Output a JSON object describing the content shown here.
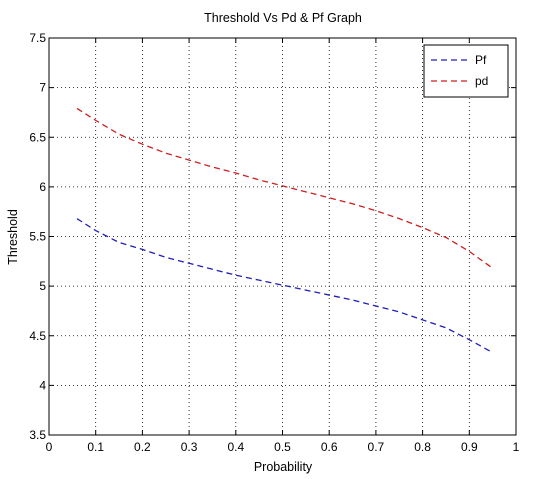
{
  "chart_data": {
    "type": "line",
    "title": "Threshold Vs Pd & Pf Graph",
    "xlabel": "Probability",
    "ylabel": "Threshold",
    "xlim": [
      0,
      1
    ],
    "ylim": [
      3.5,
      7.5
    ],
    "xticks": [
      "0",
      "0.1",
      "0.2",
      "0.3",
      "0.4",
      "0.5",
      "0.6",
      "0.7",
      "0.8",
      "0.9",
      "1"
    ],
    "yticks": [
      "3.5",
      "4",
      "4.5",
      "5",
      "5.5",
      "6",
      "6.5",
      "7",
      "7.5"
    ],
    "grid": true,
    "legend_position": "top-right",
    "series": [
      {
        "name": "Pf",
        "color": "#1f1fb8",
        "style": "dashed",
        "x": [
          0.06,
          0.1,
          0.15,
          0.2,
          0.25,
          0.3,
          0.35,
          0.4,
          0.45,
          0.5,
          0.55,
          0.6,
          0.65,
          0.7,
          0.75,
          0.8,
          0.85,
          0.9,
          0.95
        ],
        "y": [
          5.68,
          5.56,
          5.44,
          5.37,
          5.29,
          5.23,
          5.17,
          5.11,
          5.06,
          5.01,
          4.96,
          4.91,
          4.86,
          4.8,
          4.74,
          4.66,
          4.58,
          4.46,
          4.33
        ]
      },
      {
        "name": "pd",
        "color": "#cc1f1f",
        "style": "dashed",
        "x": [
          0.06,
          0.1,
          0.15,
          0.2,
          0.25,
          0.3,
          0.35,
          0.4,
          0.45,
          0.5,
          0.55,
          0.6,
          0.65,
          0.7,
          0.75,
          0.8,
          0.85,
          0.9,
          0.95
        ],
        "y": [
          6.79,
          6.67,
          6.53,
          6.43,
          6.34,
          6.27,
          6.2,
          6.14,
          6.07,
          6.01,
          5.95,
          5.89,
          5.83,
          5.76,
          5.68,
          5.59,
          5.49,
          5.35,
          5.18
        ]
      }
    ]
  }
}
